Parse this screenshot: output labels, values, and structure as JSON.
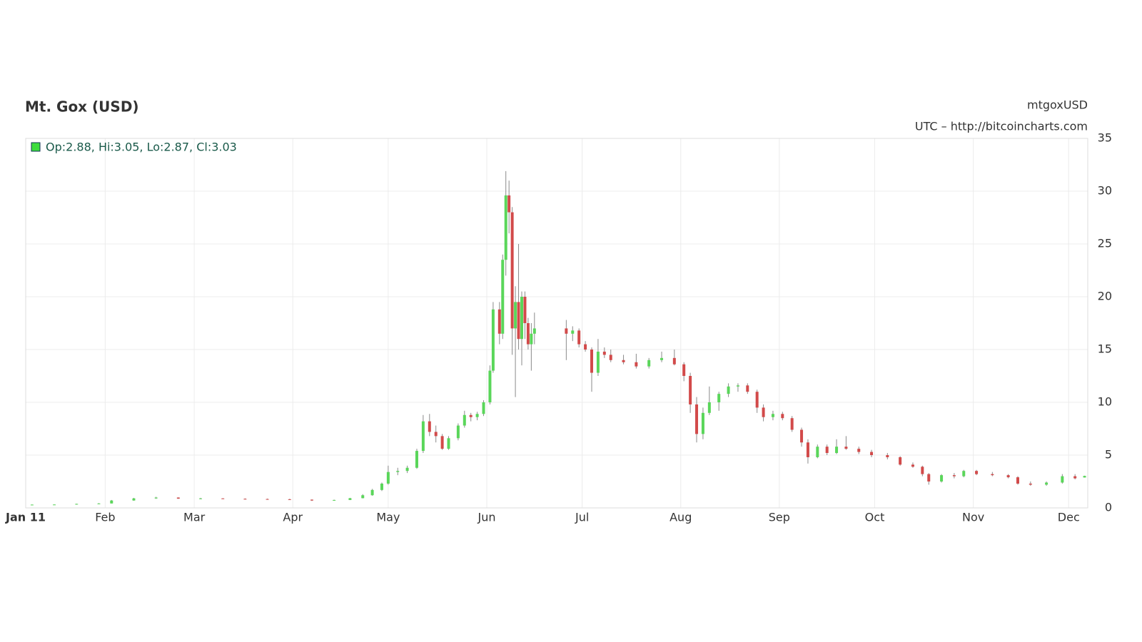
{
  "chart_data": {
    "type": "candlestick",
    "title": "Mt. Gox (USD)",
    "symbol": "mtgoxUSD",
    "source": "UTC – http://bitcoincharts.com",
    "legend_text": "Op:2.88, Hi:3.05, Lo:2.87, Cl:3.03",
    "up_color": "#5ad65a",
    "down_color": "#d24a4a",
    "wick_color": "#8a8a8a",
    "grid": true,
    "xlim": [
      6,
      340
    ],
    "ylim": [
      0,
      35
    ],
    "xticks": [
      {
        "value": 6,
        "label": "Jan 11"
      },
      {
        "value": 31,
        "label": "Feb"
      },
      {
        "value": 59,
        "label": "Mar"
      },
      {
        "value": 90,
        "label": "Apr"
      },
      {
        "value": 120,
        "label": "May"
      },
      {
        "value": 151,
        "label": "Jun"
      },
      {
        "value": 181,
        "label": "Jul"
      },
      {
        "value": 212,
        "label": "Aug"
      },
      {
        "value": 243,
        "label": "Sep"
      },
      {
        "value": 273,
        "label": "Oct"
      },
      {
        "value": 304,
        "label": "Nov"
      },
      {
        "value": 334,
        "label": "Dec"
      }
    ],
    "yticks": [
      0,
      5,
      10,
      15,
      20,
      25,
      30,
      35
    ],
    "x": [
      8,
      15,
      22,
      29,
      33,
      40,
      47,
      54,
      61,
      68,
      75,
      82,
      89,
      96,
      103,
      108,
      112,
      115,
      118,
      120,
      123,
      126,
      129,
      131,
      133,
      135,
      137,
      139,
      142,
      144,
      146,
      148,
      150,
      152,
      153,
      155,
      156,
      157,
      158,
      159,
      160,
      161,
      162,
      163,
      164,
      165,
      166,
      176,
      178,
      180,
      182,
      184,
      186,
      188,
      190,
      194,
      198,
      202,
      206,
      210,
      213,
      215,
      217,
      219,
      221,
      224,
      227,
      230,
      233,
      236,
      238,
      241,
      244,
      247,
      250,
      252,
      255,
      258,
      261,
      264,
      268,
      272,
      277,
      281,
      285,
      288,
      290,
      294,
      298,
      301,
      305,
      310,
      315,
      318,
      322,
      327,
      332,
      336,
      339
    ],
    "open": [
      0.3,
      0.31,
      0.32,
      0.38,
      0.42,
      0.7,
      0.9,
      0.98,
      0.88,
      0.9,
      0.86,
      0.84,
      0.82,
      0.78,
      0.7,
      0.75,
      0.92,
      1.2,
      1.7,
      2.3,
      3.4,
      3.5,
      3.8,
      5.4,
      8.2,
      7.2,
      6.8,
      5.6,
      6.6,
      7.8,
      8.8,
      8.6,
      8.9,
      10.0,
      13.0,
      18.8,
      16.5,
      23.5,
      29.6,
      28.0,
      17.0,
      19.5,
      16.0,
      20.0,
      17.5,
      15.5,
      16.5,
      17.0,
      16.5,
      16.8,
      15.5,
      15.0,
      12.8,
      14.8,
      14.5,
      14.0,
      13.8,
      13.4,
      14.0,
      14.2,
      13.6,
      12.5,
      9.8,
      7.0,
      9.0,
      10.0,
      10.8,
      11.5,
      11.6,
      11.0,
      9.5,
      8.6,
      8.9,
      8.5,
      7.4,
      6.2,
      4.8,
      5.8,
      5.2,
      5.8,
      5.6,
      5.3,
      5.0,
      4.8,
      4.1,
      3.9,
      3.2,
      2.5,
      3.1,
      3.0,
      3.5,
      3.2,
      3.1,
      2.9,
      2.3,
      2.2,
      2.4,
      3.0,
      2.88
    ],
    "high": [
      0.32,
      0.33,
      0.4,
      0.45,
      0.75,
      0.95,
      1.05,
      1.0,
      0.95,
      0.92,
      0.9,
      0.88,
      0.86,
      0.8,
      0.78,
      0.95,
      1.3,
      1.8,
      2.4,
      4.0,
      3.8,
      4.0,
      5.6,
      8.8,
      8.9,
      7.8,
      7.0,
      6.8,
      8.0,
      9.2,
      9.0,
      9.1,
      10.2,
      13.5,
      19.5,
      19.5,
      24.0,
      31.9,
      31.0,
      28.5,
      21.0,
      25.0,
      20.5,
      20.5,
      18.0,
      17.5,
      18.5,
      17.8,
      17.2,
      17.0,
      15.8,
      15.2,
      16.0,
      15.2,
      15.0,
      14.5,
      14.6,
      14.2,
      14.8,
      15.0,
      13.8,
      12.8,
      10.5,
      9.5,
      11.5,
      11.0,
      11.8,
      11.8,
      11.8,
      11.2,
      9.8,
      9.2,
      9.1,
      8.7,
      7.6,
      6.5,
      6.0,
      6.0,
      6.5,
      6.8,
      5.8,
      5.5,
      5.2,
      4.9,
      4.3,
      4.0,
      3.3,
      3.2,
      3.3,
      3.6,
      3.6,
      3.4,
      3.2,
      3.0,
      2.5,
      2.5,
      3.2,
      3.2,
      3.05
    ],
    "low": [
      0.29,
      0.3,
      0.31,
      0.36,
      0.42,
      0.68,
      0.86,
      0.85,
      0.82,
      0.84,
      0.8,
      0.78,
      0.76,
      0.66,
      0.68,
      0.74,
      0.9,
      1.15,
      1.6,
      2.2,
      3.1,
      3.3,
      3.7,
      5.2,
      6.8,
      6.2,
      5.5,
      5.5,
      6.4,
      7.6,
      8.2,
      8.3,
      8.7,
      9.8,
      12.8,
      15.5,
      16.0,
      22.0,
      26.0,
      14.5,
      10.5,
      15.0,
      13.5,
      16.0,
      15.0,
      13.0,
      15.5,
      14.0,
      15.8,
      15.2,
      14.8,
      11.0,
      12.5,
      14.2,
      13.8,
      13.6,
      13.2,
      13.2,
      13.8,
      13.5,
      12.0,
      9.0,
      6.2,
      6.5,
      8.8,
      9.2,
      10.5,
      11.0,
      10.8,
      9.0,
      8.2,
      8.3,
      8.3,
      7.2,
      5.8,
      4.2,
      4.7,
      5.0,
      5.1,
      5.5,
      5.1,
      4.8,
      4.6,
      4.0,
      3.8,
      3.0,
      2.2,
      2.4,
      2.8,
      2.9,
      3.1,
      3.0,
      2.8,
      2.2,
      2.1,
      2.1,
      2.3,
      2.7,
      2.87
    ],
    "close": [
      0.31,
      0.32,
      0.38,
      0.42,
      0.7,
      0.9,
      0.98,
      0.88,
      0.9,
      0.86,
      0.84,
      0.82,
      0.78,
      0.7,
      0.75,
      0.92,
      1.2,
      1.7,
      2.3,
      3.4,
      3.5,
      3.8,
      5.4,
      8.2,
      7.2,
      6.8,
      5.6,
      6.6,
      7.8,
      8.8,
      8.6,
      8.9,
      10.0,
      13.0,
      18.8,
      16.5,
      23.5,
      29.6,
      28.0,
      17.0,
      19.5,
      16.0,
      20.0,
      17.5,
      15.5,
      16.5,
      17.0,
      16.5,
      16.8,
      15.5,
      15.0,
      12.8,
      14.8,
      14.5,
      14.0,
      13.8,
      13.4,
      14.0,
      14.2,
      13.6,
      12.5,
      9.8,
      7.0,
      9.0,
      10.0,
      10.8,
      11.5,
      11.6,
      11.0,
      9.5,
      8.6,
      8.9,
      8.5,
      7.4,
      6.2,
      4.8,
      5.8,
      5.2,
      5.8,
      5.6,
      5.3,
      5.0,
      4.8,
      4.1,
      3.9,
      3.2,
      2.5,
      3.1,
      3.0,
      3.5,
      3.2,
      3.1,
      2.9,
      2.3,
      2.2,
      2.4,
      3.0,
      2.8,
      3.03
    ]
  }
}
